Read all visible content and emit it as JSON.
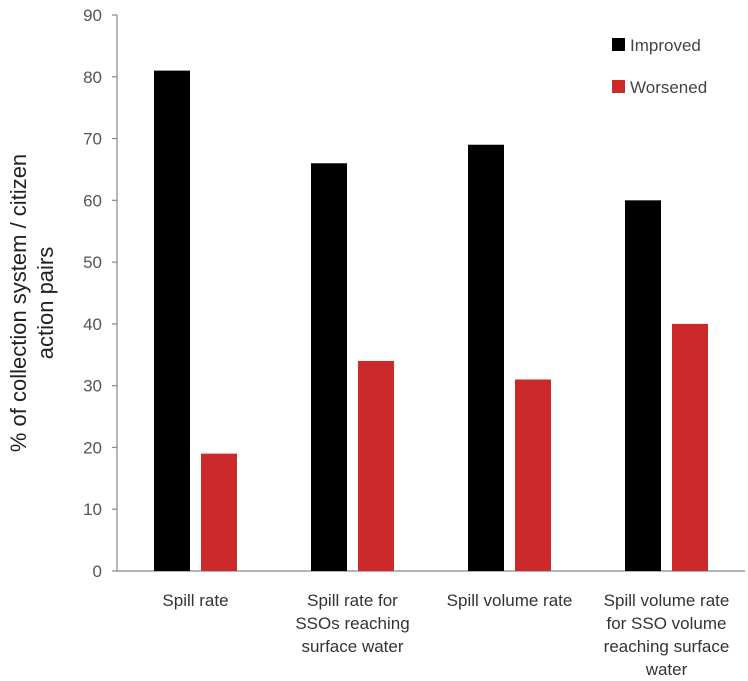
{
  "chart_data": {
    "type": "bar",
    "title": "",
    "xlabel": "",
    "ylabel": [
      "% of collection system / citizen",
      "action pairs"
    ],
    "ylim": [
      0,
      90
    ],
    "yticks": [
      0,
      10,
      20,
      30,
      40,
      50,
      60,
      70,
      80,
      90
    ],
    "categories": [
      [
        "Spill rate"
      ],
      [
        "Spill rate  for",
        "SSOs  reaching",
        "surface water"
      ],
      [
        "Spill volume rate"
      ],
      [
        "Spill volume rate",
        "for SSO  volume",
        "reaching  surface",
        "water"
      ]
    ],
    "series": [
      {
        "name": "Improved",
        "color": "#000000",
        "values": [
          81,
          66,
          69,
          60
        ]
      },
      {
        "name": "Worsened",
        "color": "#cc2a2a",
        "values": [
          19,
          34,
          31,
          40
        ]
      }
    ],
    "grid": false,
    "legend_position": "top-right"
  }
}
